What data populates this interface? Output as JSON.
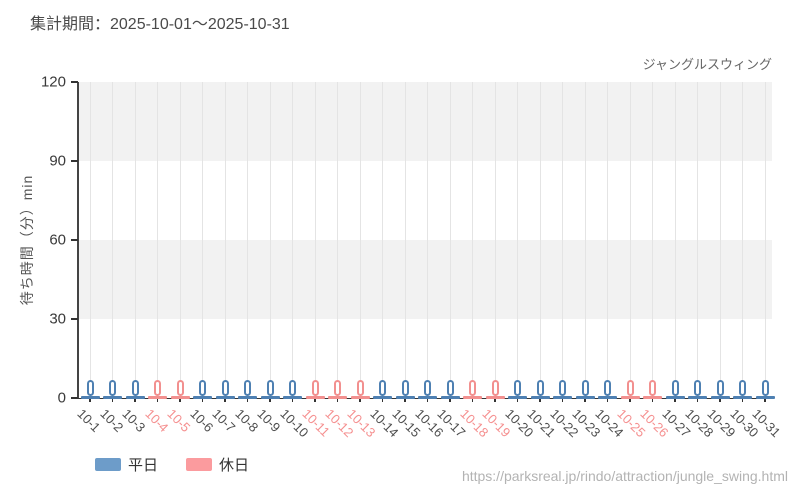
{
  "header": {
    "period": "集計期間：2025-10-01〜2025-10-31"
  },
  "chart": {
    "title": "ジャングルスウィング",
    "ylabel": "待ち時間（分）min"
  },
  "legend": {
    "items": [
      {
        "label": "平日",
        "color": "#6d9cc9"
      },
      {
        "label": "休日",
        "color": "#fb9b9e"
      }
    ]
  },
  "footer": {
    "url": "https://parksreal.jp/rindo/attraction/jungle_swing.html"
  },
  "colors": {
    "weekday_marker": "#4e80b2",
    "holiday_marker": "#f2908f",
    "weekday_label": "#4d4d4d",
    "holiday_label": "#f58f8f",
    "band": "#f2f2f2",
    "grid": "#e4e4e4",
    "axis": "#333333",
    "url_text": "#b3b3b3"
  },
  "chart_data": {
    "type": "candlestick",
    "title": "ジャングルスウィング",
    "xlabel": "",
    "ylabel": "待ち時間（分）min",
    "ylim": [
      0,
      120
    ],
    "yticks": [
      0,
      30,
      60,
      90,
      120
    ],
    "grid": "vertical-per-date, horizontal shaded bands 30-unit alternating",
    "legend_position": "bottom-left",
    "categories": [
      "10-1",
      "10-2",
      "10-3",
      "10-4",
      "10-5",
      "10-6",
      "10-7",
      "10-8",
      "10-9",
      "10-10",
      "10-11",
      "10-12",
      "10-13",
      "10-14",
      "10-15",
      "10-16",
      "10-17",
      "10-18",
      "10-19",
      "10-20",
      "10-21",
      "10-22",
      "10-23",
      "10-24",
      "10-25",
      "10-26",
      "10-27",
      "10-28",
      "10-29",
      "10-30",
      "10-31"
    ],
    "holiday_dates": [
      "10-4",
      "10-5",
      "10-11",
      "10-12",
      "10-13",
      "10-18",
      "10-19",
      "10-25",
      "10-26"
    ],
    "points": [
      {
        "date": "10-1",
        "day_type": "weekday",
        "range_min": 0,
        "range_max": 5,
        "median": 0
      },
      {
        "date": "10-2",
        "day_type": "weekday",
        "range_min": 0,
        "range_max": 5,
        "median": 0
      },
      {
        "date": "10-3",
        "day_type": "weekday",
        "range_min": 0,
        "range_max": 5,
        "median": 0
      },
      {
        "date": "10-4",
        "day_type": "holiday",
        "range_min": 0,
        "range_max": 5,
        "median": 0
      },
      {
        "date": "10-5",
        "day_type": "holiday",
        "range_min": 0,
        "range_max": 5,
        "median": 0
      },
      {
        "date": "10-6",
        "day_type": "weekday",
        "range_min": 0,
        "range_max": 5,
        "median": 0
      },
      {
        "date": "10-7",
        "day_type": "weekday",
        "range_min": 0,
        "range_max": 5,
        "median": 0
      },
      {
        "date": "10-8",
        "day_type": "weekday",
        "range_min": 0,
        "range_max": 5,
        "median": 0
      },
      {
        "date": "10-9",
        "day_type": "weekday",
        "range_min": 0,
        "range_max": 5,
        "median": 0
      },
      {
        "date": "10-10",
        "day_type": "weekday",
        "range_min": 0,
        "range_max": 5,
        "median": 0
      },
      {
        "date": "10-11",
        "day_type": "holiday",
        "range_min": 0,
        "range_max": 5,
        "median": 0
      },
      {
        "date": "10-12",
        "day_type": "holiday",
        "range_min": 0,
        "range_max": 5,
        "median": 0
      },
      {
        "date": "10-13",
        "day_type": "holiday",
        "range_min": 0,
        "range_max": 5,
        "median": 0
      },
      {
        "date": "10-14",
        "day_type": "weekday",
        "range_min": 0,
        "range_max": 5,
        "median": 0
      },
      {
        "date": "10-15",
        "day_type": "weekday",
        "range_min": 0,
        "range_max": 5,
        "median": 0
      },
      {
        "date": "10-16",
        "day_type": "weekday",
        "range_min": 0,
        "range_max": 5,
        "median": 0
      },
      {
        "date": "10-17",
        "day_type": "weekday",
        "range_min": 0,
        "range_max": 5,
        "median": 0
      },
      {
        "date": "10-18",
        "day_type": "holiday",
        "range_min": 0,
        "range_max": 5,
        "median": 0
      },
      {
        "date": "10-19",
        "day_type": "holiday",
        "range_min": 0,
        "range_max": 5,
        "median": 0
      },
      {
        "date": "10-20",
        "day_type": "weekday",
        "range_min": 0,
        "range_max": 5,
        "median": 0
      },
      {
        "date": "10-21",
        "day_type": "weekday",
        "range_min": 0,
        "range_max": 5,
        "median": 0
      },
      {
        "date": "10-22",
        "day_type": "weekday",
        "range_min": 0,
        "range_max": 5,
        "median": 0
      },
      {
        "date": "10-23",
        "day_type": "weekday",
        "range_min": 0,
        "range_max": 5,
        "median": 0
      },
      {
        "date": "10-24",
        "day_type": "weekday",
        "range_min": 0,
        "range_max": 5,
        "median": 0
      },
      {
        "date": "10-25",
        "day_type": "holiday",
        "range_min": 0,
        "range_max": 5,
        "median": 0
      },
      {
        "date": "10-26",
        "day_type": "holiday",
        "range_min": 0,
        "range_max": 5,
        "median": 0
      },
      {
        "date": "10-27",
        "day_type": "weekday",
        "range_min": 0,
        "range_max": 5,
        "median": 0
      },
      {
        "date": "10-28",
        "day_type": "weekday",
        "range_min": 0,
        "range_max": 5,
        "median": 0
      },
      {
        "date": "10-29",
        "day_type": "weekday",
        "range_min": 0,
        "range_max": 5,
        "median": 0
      },
      {
        "date": "10-30",
        "day_type": "weekday",
        "range_min": 0,
        "range_max": 5,
        "median": 0
      },
      {
        "date": "10-31",
        "day_type": "weekday",
        "range_min": 0,
        "range_max": 5,
        "median": 0
      }
    ]
  }
}
